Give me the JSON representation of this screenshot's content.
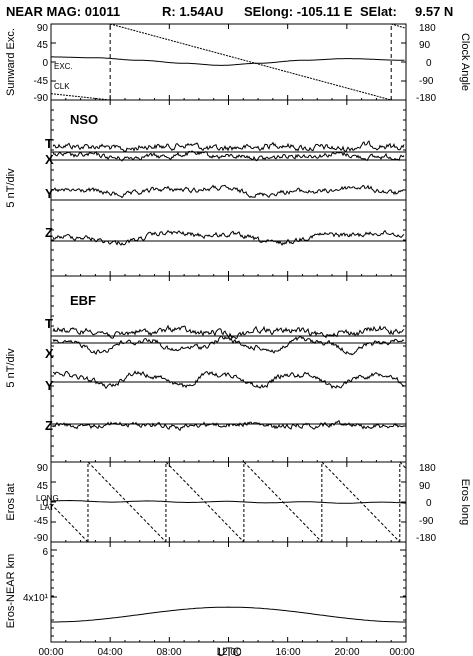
{
  "header": {
    "mission_label": "NEAR MAG: 01011",
    "r_label": "R: 1.54AU",
    "selong_label": "SElong: -105.11 E",
    "selat_label": "SElat:",
    "selat_value": "9.57 N"
  },
  "chart_data": [
    {
      "id": "sunward-clock",
      "type": "line",
      "ylabel_left": "Sunward Exc.",
      "ylabel_right": "Clock Angle",
      "left_ticks": [
        "90",
        "45",
        "0",
        "-45",
        "-90"
      ],
      "right_ticks": [
        "180",
        "90",
        "0",
        "-90",
        "-180"
      ],
      "ylim_left": [
        -90,
        90
      ],
      "ylim_right": [
        -180,
        180
      ],
      "series": [
        {
          "name": "EXC.",
          "x_hours": [
            0,
            3,
            6,
            9,
            11.5,
            14,
            17,
            20,
            24
          ],
          "y_left": [
            12,
            10,
            4,
            -3,
            -8,
            -3,
            4,
            8,
            4
          ]
        },
        {
          "name": "CLK",
          "x_hours": [
            0,
            4.0,
            4.0,
            23.0,
            23.0,
            24
          ],
          "y_right": [
            -150,
            -180,
            180,
            -180,
            180,
            160
          ],
          "style": "dashed-jumps"
        }
      ]
    },
    {
      "id": "nso",
      "type": "line",
      "panel_label": "NSO",
      "ylabel": "5 nT/div",
      "traces": [
        "T",
        "X",
        "Y",
        "Z"
      ]
    },
    {
      "id": "ebf",
      "type": "line",
      "panel_label": "EBF",
      "ylabel": "5 nT/div",
      "traces": [
        "T",
        "X",
        "Y",
        "Z"
      ]
    },
    {
      "id": "eros-lat-long",
      "type": "line",
      "ylabel_left": "Eros lat",
      "ylabel_right": "Eros long",
      "left_ticks": [
        "90",
        "45",
        "0",
        "-45",
        "-90"
      ],
      "right_ticks": [
        "180",
        "90",
        "0",
        "-90",
        "-180"
      ],
      "ylim_left": [
        -90,
        90
      ],
      "ylim_right": [
        -180,
        180
      ],
      "series": [
        {
          "name": "LONG",
          "x_hours": [
            0,
            24
          ],
          "note": "sawtooth, period ~5.27 h (Eros rotation)"
        },
        {
          "name": "LAT",
          "x_hours": [
            0,
            12,
            24
          ],
          "y_left": [
            2,
            0,
            -2
          ]
        }
      ]
    },
    {
      "id": "eros-near-distance",
      "type": "line",
      "ylabel": "Eros-NEAR km",
      "y_ticks": [
        "6",
        "4x10¹"
      ],
      "series": [
        {
          "name": "distance",
          "x_hours": [
            0,
            6,
            12,
            18,
            24
          ],
          "y_km": [
            37,
            38.6,
            42.2,
            38.6,
            37
          ]
        }
      ]
    }
  ],
  "xaxis": {
    "label": "UTC",
    "tick_labels": [
      "00:00",
      "04:00",
      "08:00",
      "12:00",
      "16:00",
      "20:00",
      "00:00"
    ],
    "tick_hours": [
      0,
      4,
      8,
      12,
      16,
      20,
      24
    ]
  }
}
